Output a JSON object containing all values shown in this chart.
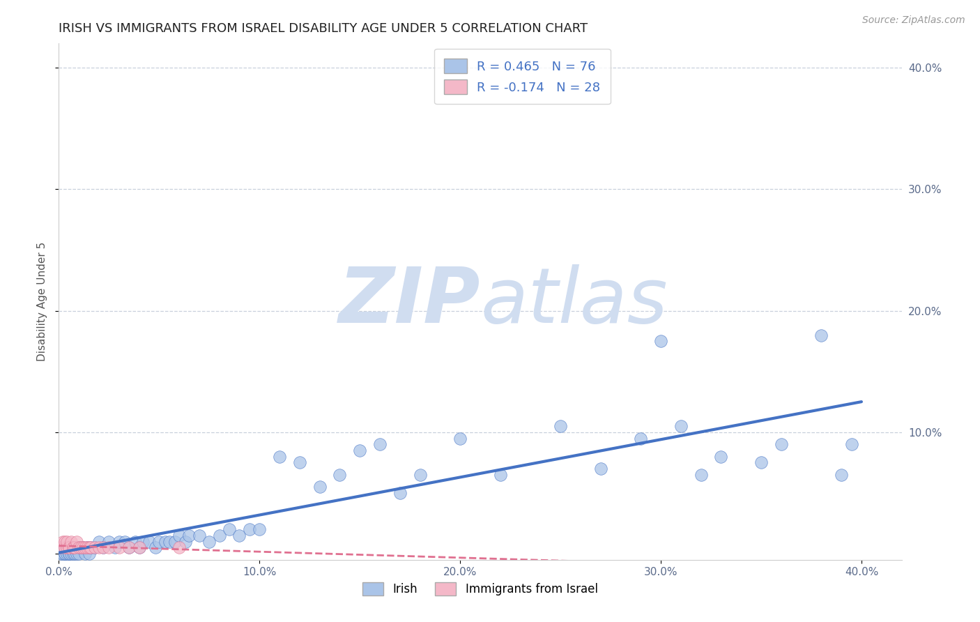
{
  "title": "IRISH VS IMMIGRANTS FROM ISRAEL DISABILITY AGE UNDER 5 CORRELATION CHART",
  "source_text": "Source: ZipAtlas.com",
  "ylabel": "Disability Age Under 5",
  "xlim": [
    0.0,
    0.42
  ],
  "ylim": [
    -0.005,
    0.42
  ],
  "xticks": [
    0.0,
    0.1,
    0.2,
    0.3,
    0.4
  ],
  "yticks": [
    0.0,
    0.1,
    0.2,
    0.3,
    0.4
  ],
  "xticklabels": [
    "0.0%",
    "10.0%",
    "20.0%",
    "30.0%",
    "40.0%"
  ],
  "yticklabels_right": [
    "10.0%",
    "20.0%",
    "30.0%",
    "40.0%"
  ],
  "irish_R": 0.465,
  "irish_N": 76,
  "israel_R": -0.174,
  "israel_N": 28,
  "irish_color": "#aac4e8",
  "irish_line_color": "#4472c4",
  "israel_color": "#f4b8c8",
  "israel_line_color": "#e07090",
  "background_color": "#ffffff",
  "watermark_color": "#d0ddf0",
  "title_fontsize": 13,
  "legend_R_color": "#4472c4",
  "grid_color": "#c8d0dc",
  "irish_x": [
    0.001,
    0.001,
    0.002,
    0.002,
    0.003,
    0.003,
    0.003,
    0.004,
    0.004,
    0.005,
    0.005,
    0.005,
    0.006,
    0.006,
    0.007,
    0.007,
    0.008,
    0.008,
    0.009,
    0.01,
    0.01,
    0.011,
    0.012,
    0.013,
    0.014,
    0.015,
    0.016,
    0.018,
    0.02,
    0.022,
    0.025,
    0.028,
    0.03,
    0.033,
    0.035,
    0.038,
    0.04,
    0.042,
    0.045,
    0.048,
    0.05,
    0.053,
    0.055,
    0.058,
    0.06,
    0.063,
    0.065,
    0.07,
    0.075,
    0.08,
    0.085,
    0.09,
    0.095,
    0.1,
    0.11,
    0.12,
    0.13,
    0.14,
    0.15,
    0.16,
    0.17,
    0.18,
    0.2,
    0.22,
    0.25,
    0.27,
    0.29,
    0.3,
    0.31,
    0.32,
    0.33,
    0.35,
    0.36,
    0.38,
    0.39,
    0.395
  ],
  "irish_y": [
    0.0,
    0.005,
    0.0,
    0.005,
    0.0,
    0.005,
    0.0,
    0.0,
    0.005,
    0.0,
    0.005,
    0.0,
    0.0,
    0.005,
    0.0,
    0.005,
    0.0,
    0.005,
    0.0,
    0.005,
    0.0,
    0.005,
    0.005,
    0.0,
    0.005,
    0.0,
    0.005,
    0.005,
    0.01,
    0.005,
    0.01,
    0.005,
    0.01,
    0.01,
    0.005,
    0.01,
    0.005,
    0.01,
    0.01,
    0.005,
    0.01,
    0.01,
    0.01,
    0.01,
    0.015,
    0.01,
    0.015,
    0.015,
    0.01,
    0.015,
    0.02,
    0.015,
    0.02,
    0.02,
    0.08,
    0.075,
    0.055,
    0.065,
    0.085,
    0.09,
    0.05,
    0.065,
    0.095,
    0.065,
    0.105,
    0.07,
    0.095,
    0.175,
    0.105,
    0.065,
    0.08,
    0.075,
    0.09,
    0.18,
    0.065,
    0.09
  ],
  "israel_x": [
    0.001,
    0.002,
    0.003,
    0.003,
    0.004,
    0.004,
    0.005,
    0.005,
    0.006,
    0.007,
    0.007,
    0.008,
    0.009,
    0.01,
    0.011,
    0.012,
    0.013,
    0.014,
    0.015,
    0.016,
    0.018,
    0.02,
    0.022,
    0.025,
    0.03,
    0.035,
    0.04,
    0.06
  ],
  "israel_y": [
    0.005,
    0.01,
    0.005,
    0.01,
    0.005,
    0.01,
    0.005,
    0.005,
    0.01,
    0.005,
    0.005,
    0.005,
    0.01,
    0.005,
    0.005,
    0.005,
    0.005,
    0.005,
    0.005,
    0.005,
    0.005,
    0.005,
    0.005,
    0.005,
    0.005,
    0.005,
    0.005,
    0.005
  ]
}
